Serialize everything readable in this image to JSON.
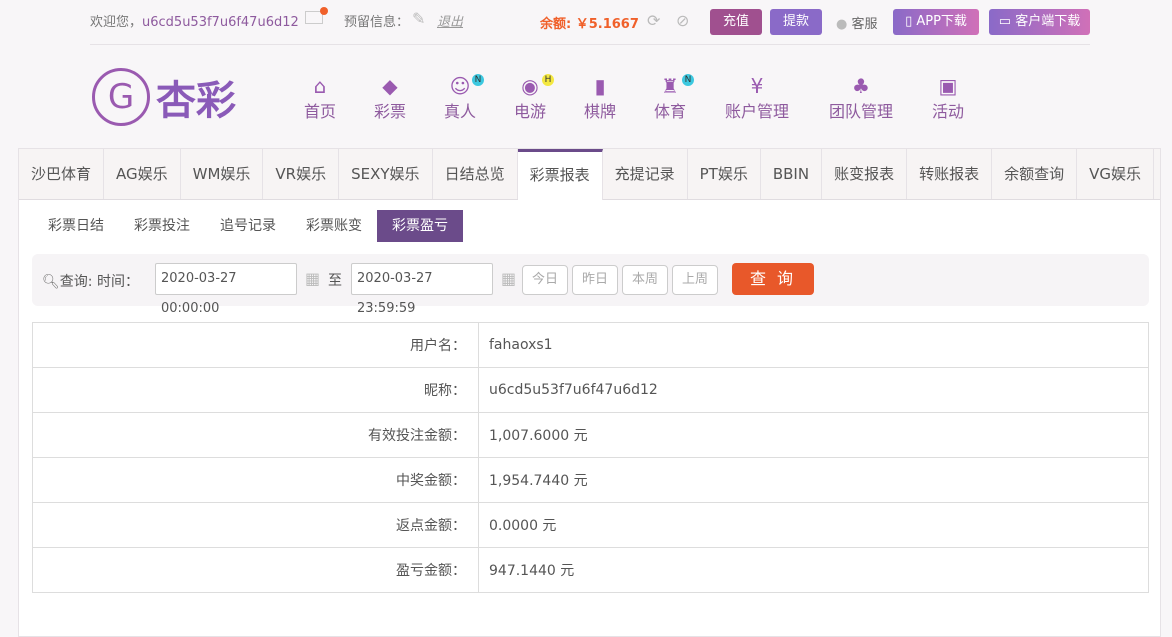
{
  "topbar": {
    "welcome": "欢迎您，",
    "username": "u6cd5u53f7u6f47u6d12",
    "reserved_label": "预留信息：",
    "logout": "退出",
    "balance_label": "余额:",
    "balance": "￥5.1667",
    "recharge": "充值",
    "withdraw": "提款",
    "service": "客服",
    "app_download": "APP下载",
    "client_download": "客户端下载"
  },
  "logo": "杏彩",
  "nav": [
    {
      "label": "首页",
      "icon": "home-icon"
    },
    {
      "label": "彩票",
      "icon": "ticket-icon"
    },
    {
      "label": "真人",
      "icon": "dealer-icon",
      "badge": "N"
    },
    {
      "label": "电游",
      "icon": "gamepad-icon",
      "badge": "H"
    },
    {
      "label": "棋牌",
      "icon": "cards-icon"
    },
    {
      "label": "体育",
      "icon": "trophy-icon",
      "badge": "N"
    },
    {
      "label": "账户管理",
      "icon": "yen-icon"
    },
    {
      "label": "团队管理",
      "icon": "team-icon"
    },
    {
      "label": "活动",
      "icon": "gift-icon"
    }
  ],
  "tabs": [
    "沙巴体育",
    "AG娱乐",
    "WM娱乐",
    "VR娱乐",
    "SEXY娱乐",
    "日结总览",
    "彩票报表",
    "充提记录",
    "PT娱乐",
    "BBIN",
    "账变报表",
    "转账报表",
    "余额查询",
    "VG娱乐"
  ],
  "active_tab": "彩票报表",
  "subtabs": [
    "彩票日结",
    "彩票投注",
    "追号记录",
    "彩票账变",
    "彩票盈亏"
  ],
  "active_subtab": "彩票盈亏",
  "query": {
    "label": "查询:",
    "time_label": "时间：",
    "start": "2020-03-27 00:00:00",
    "to": "至",
    "end": "2020-03-27 23:59:59",
    "today": "今日",
    "yesterday": "昨日",
    "this_week": "本周",
    "last_week": "上周",
    "submit": "查 询"
  },
  "rows": [
    {
      "label": "用户名：",
      "value": "fahaoxs1"
    },
    {
      "label": "昵称：",
      "value": "u6cd5u53f7u6f47u6d12"
    },
    {
      "label": "有效投注金额：",
      "value": "1,007.6000 元"
    },
    {
      "label": "中奖金额：",
      "value": "1,954.7440 元"
    },
    {
      "label": "返点金额：",
      "value": "0.0000 元"
    },
    {
      "label": "盈亏金额：",
      "value": "947.1440 元"
    }
  ],
  "colors": {
    "accent": "#6b4b8a",
    "orange": "#e8582a"
  }
}
